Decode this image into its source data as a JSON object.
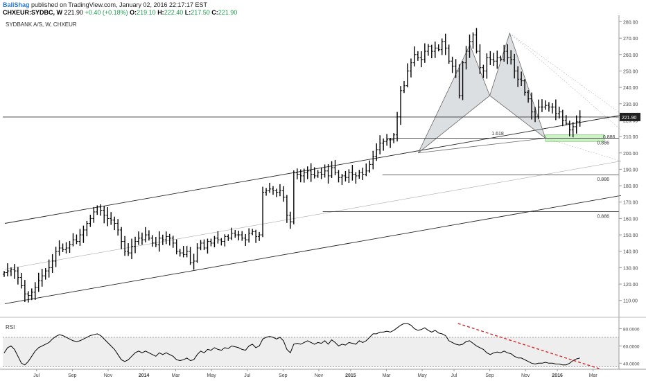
{
  "header": {
    "author": "BaliShag",
    "published": "published on TradingView.com, January 02, 2016 22:17:17 EST",
    "symbol": "CHXEUR:SYDBC, W",
    "last": "221.90",
    "change": "+0.40 (+0.18%)",
    "o_label": "O:",
    "o": "219.10",
    "h_label": "H:",
    "h": "222.40",
    "l_label": "L:",
    "l": "217.50",
    "c_label": "C:",
    "c": "221.90"
  },
  "chart_data": [
    {
      "type": "bar",
      "subtype": "ohlc",
      "title": "SYDBANK A/S, W, CHXEUR",
      "ylim": [
        101,
        284
      ],
      "y_ticks": [
        110,
        120,
        130,
        140,
        150,
        160,
        170,
        180,
        190,
        200,
        210,
        220,
        230,
        240,
        250,
        260,
        270,
        280
      ],
      "x_labels": [
        "Jul",
        "Sep",
        "Nov",
        "2014",
        "Mar",
        "May",
        "Jul",
        "Sep",
        "Nov",
        "2015",
        "Mar",
        "May",
        "Jul",
        "Sep",
        "Nov",
        "2016",
        "Mar"
      ],
      "x_label_weeks": [
        8,
        17,
        26,
        35,
        43,
        52,
        61,
        70,
        79,
        87,
        96,
        105,
        113,
        122,
        131,
        139,
        148
      ],
      "weeks_visible": 155,
      "last_price_label": "221.90",
      "closes": [
        127,
        128,
        129,
        128,
        124,
        119,
        114,
        113,
        115,
        118,
        122,
        125,
        128,
        130,
        134,
        140,
        142,
        141,
        142,
        144,
        147,
        146,
        150,
        153,
        157,
        160,
        164,
        167,
        165,
        162,
        160,
        159,
        157,
        153,
        146,
        140,
        139,
        143,
        146,
        148,
        147,
        150,
        148,
        145,
        144,
        148,
        147,
        149,
        148,
        145,
        140,
        139,
        138,
        140,
        133,
        134,
        142,
        145,
        142,
        146,
        145,
        148,
        147,
        146,
        149,
        148,
        151,
        150,
        150,
        148,
        147,
        151,
        152,
        149,
        150,
        176,
        177,
        178,
        177,
        176,
        177,
        173,
        162,
        158,
        188,
        187,
        186,
        188,
        189,
        187,
        186,
        188,
        187,
        189,
        186,
        191,
        188,
        185,
        186,
        185,
        188,
        187,
        186,
        188,
        187,
        189,
        193,
        198,
        202,
        206,
        207,
        208,
        208,
        211,
        222,
        238,
        241,
        250,
        255,
        260,
        258,
        257,
        262,
        265,
        262,
        264,
        263,
        268,
        264,
        256,
        253,
        250,
        235,
        255,
        262,
        268,
        272,
        262,
        252,
        250,
        258,
        257,
        256,
        258,
        257,
        262,
        258,
        257,
        250,
        245,
        244,
        237,
        233,
        225,
        222,
        228,
        228,
        229,
        228,
        228,
        224,
        225,
        220,
        218,
        214,
        216,
        219,
        222
      ],
      "patterns": [
        {
          "type": "bat",
          "points": [
            [
              104,
              200
            ],
            [
              117,
              266
            ],
            [
              122,
              235
            ],
            [
              127,
              273
            ],
            [
              136,
              209
            ]
          ],
          "labels": [
            {
              "text": "1.618",
              "at": [
                124,
                210
              ]
            },
            {
              "text": "0.886",
              "at": [
                152,
                208
              ]
            }
          ]
        },
        {
          "type": "hline",
          "value": 221.9
        },
        {
          "type": "hline",
          "value": 209,
          "label": "0.886"
        },
        {
          "type": "hline",
          "value": 186.7,
          "label": "0.886"
        },
        {
          "type": "hline",
          "value": 164.2,
          "label": "0.886"
        }
      ]
    },
    {
      "type": "line",
      "title": "RSI",
      "ylim": [
        33,
        90
      ],
      "y_ticks": [
        40,
        60,
        80
      ],
      "y_tick_labels": [
        "40.0000",
        "60.0000",
        "80.0000"
      ],
      "bands": [
        70,
        36
      ],
      "values": [
        52,
        58,
        60,
        56,
        48,
        40,
        38,
        42,
        48,
        54,
        58,
        60,
        62,
        64,
        68,
        71,
        73,
        72,
        70,
        68,
        66,
        65,
        66,
        68,
        70,
        72,
        73,
        74,
        72,
        68,
        64,
        60,
        56,
        50,
        44,
        42,
        44,
        48,
        52,
        54,
        52,
        54,
        52,
        50,
        48,
        52,
        50,
        52,
        50,
        48,
        44,
        43,
        44,
        46,
        43,
        44,
        50,
        54,
        52,
        56,
        55,
        58,
        56,
        55,
        58,
        57,
        60,
        59,
        58,
        56,
        55,
        60,
        62,
        58,
        60,
        68,
        70,
        71,
        70,
        68,
        70,
        66,
        56,
        52,
        62,
        63,
        62,
        64,
        66,
        64,
        62,
        64,
        63,
        66,
        62,
        67,
        64,
        60,
        62,
        61,
        64,
        63,
        62,
        66,
        64,
        66,
        70,
        74,
        74,
        76,
        76,
        77,
        76,
        78,
        81,
        84,
        86,
        86,
        84,
        80,
        78,
        79,
        81,
        78,
        76,
        78,
        75,
        74,
        72,
        66,
        64,
        62,
        61,
        62,
        65,
        66,
        63,
        60,
        58,
        56,
        52,
        50,
        52,
        53,
        52,
        54,
        52,
        51,
        48,
        46,
        46,
        44,
        42,
        40,
        39,
        40,
        40,
        41,
        40,
        40,
        39,
        39,
        38,
        38,
        40,
        43,
        45,
        46
      ],
      "trendline": {
        "style": "dashed",
        "color": "#d62728",
        "from": [
          114,
          86
        ],
        "to": [
          150,
          33
        ]
      }
    }
  ]
}
